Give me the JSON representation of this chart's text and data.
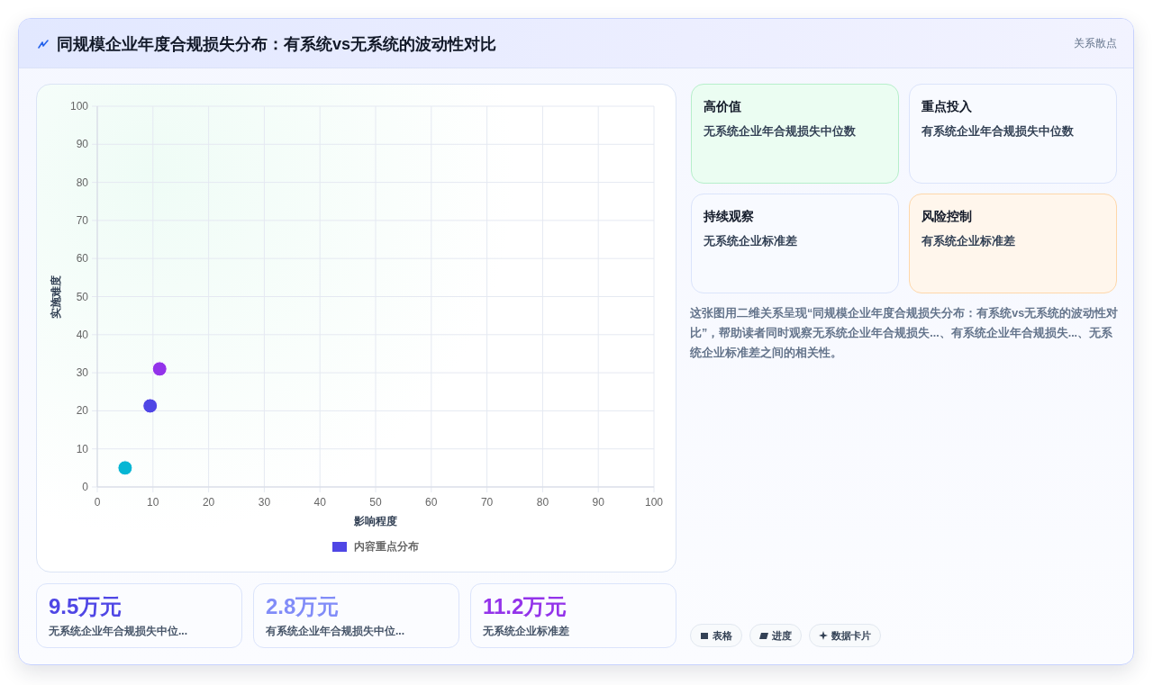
{
  "chart_data": [
    {
      "type": "other",
      "title": "同规模企业年度合规损失分布：有系统vs无系统的波动性对比",
      "subtitle": "关系散点"
    },
    {
      "type": "scatter",
      "xlabel": "影响程度",
      "ylabel": "实施难度",
      "x": [
        5,
        9.5,
        11.2
      ],
      "series": [
        {
          "name": "内容重点分布",
          "color": "#4f46e5",
          "colors": [
            "#06b6d4",
            "#4f46e5",
            "#9333ea"
          ],
          "values": [
            5,
            21.3,
            31
          ]
        }
      ],
      "xlim": [
        0,
        100
      ],
      "ylim": [
        0,
        100
      ],
      "xticks": [
        0,
        10,
        20,
        30,
        40,
        50,
        60,
        70,
        80,
        90,
        100
      ],
      "yticks": [
        0,
        10,
        20,
        30,
        40,
        50,
        60,
        70,
        80,
        90,
        100
      ],
      "grid": true,
      "legend": "bottom",
      "marker": "circle"
    },
    {
      "type": "other",
      "categories": [
        "无系统企业年合规损失中位...",
        "有系统企业年合规损失中位...",
        "无系统企业标准差"
      ],
      "values": [
        9.5,
        2.8,
        11.2
      ],
      "value_labels": [
        "9.5万元",
        "2.8万元",
        "11.2万元"
      ]
    },
    {
      "type": "other",
      "title": "高价值",
      "annotations": [
        "无系统企业年合规损失中位数"
      ]
    },
    {
      "type": "other",
      "title": "重点投入",
      "annotations": [
        "有系统企业年合规损失中位数"
      ]
    },
    {
      "type": "other",
      "title": "持续观察",
      "annotations": [
        "无系统企业标准差"
      ]
    },
    {
      "type": "other",
      "title": "风险控制",
      "annotations": [
        "有系统企业标准差"
      ]
    },
    {
      "type": "other",
      "annotations": [
        "这张图用二维关系呈现“同规模企业年度合规损失分布：有系统vs无系统的波动性对比”，帮助读者同时观察无系统企业年合规损失...、有系统企业年合规损失...、无系统企业标准差之间的相关性。"
      ]
    },
    {
      "type": "other",
      "annotations": [
        "表格",
        "进度",
        "数据卡片"
      ]
    }
  ]
}
